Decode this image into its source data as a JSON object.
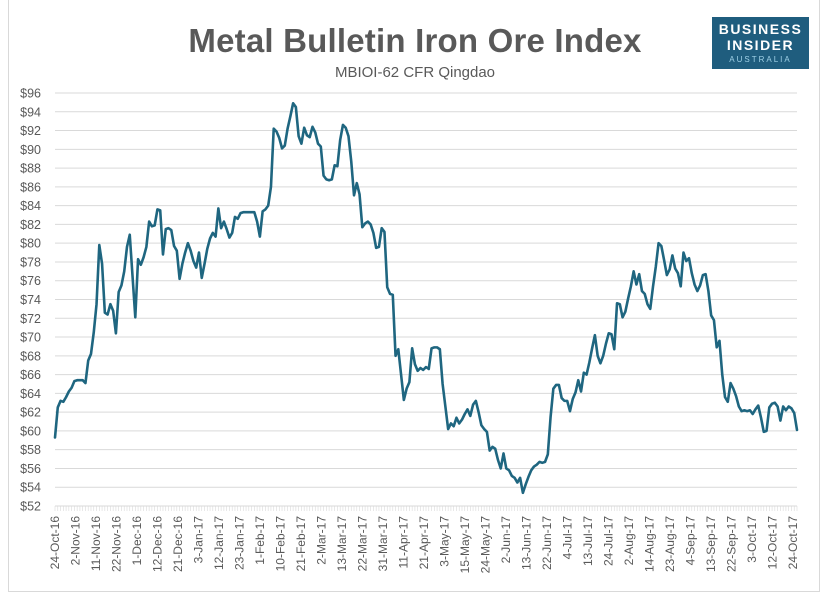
{
  "brand": {
    "line1": "BUSINESS",
    "line2": "INSIDER",
    "line3": "AUSTRALIA",
    "bg_color": "#1f5d7e"
  },
  "chart_data": {
    "type": "line",
    "title": "Metal Bulletin Iron Ore Index",
    "subtitle": "MBIOI-62 CFR Qingdao",
    "xlabel": "",
    "ylabel": "",
    "ylim": [
      52,
      96
    ],
    "ytick_step": 2,
    "yticks": [
      "$52",
      "$54",
      "$56",
      "$58",
      "$60",
      "$62",
      "$64",
      "$66",
      "$68",
      "$70",
      "$72",
      "$74",
      "$76",
      "$78",
      "$80",
      "$82",
      "$84",
      "$86",
      "$88",
      "$90",
      "$92",
      "$94",
      "$96"
    ],
    "xticks": [
      "24-Oct-16",
      "2-Nov-16",
      "11-Nov-16",
      "22-Nov-16",
      "1-Dec-16",
      "12-Dec-16",
      "21-Dec-16",
      "3-Jan-17",
      "12-Jan-17",
      "23-Jan-17",
      "1-Feb-17",
      "10-Feb-17",
      "21-Feb-17",
      "2-Mar-17",
      "13-Mar-17",
      "22-Mar-17",
      "31-Mar-17",
      "11-Apr-17",
      "21-Apr-17",
      "3-May-17",
      "15-May-17",
      "24-May-17",
      "2-Jun-17",
      "13-Jun-17",
      "22-Jun-17",
      "4-Jul-17",
      "13-Jul-17",
      "24-Jul-17",
      "2-Aug-17",
      "14-Aug-17",
      "23-Aug-17",
      "4-Sep-17",
      "13-Sep-17",
      "22-Sep-17",
      "3-Oct-17",
      "12-Oct-17",
      "24-Oct-17"
    ],
    "grid": true,
    "legend": "none",
    "line_color": "#1f6680",
    "series": [
      {
        "name": "MBIOI-62 CFR Qingdao (US$/t)",
        "values": [
          59.3,
          62.5,
          63.2,
          63.1,
          63.6,
          64.2,
          64.6,
          65.3,
          65.4,
          65.4,
          65.4,
          65.1,
          67.5,
          68.2,
          70.5,
          73.5,
          79.8,
          77.8,
          72.6,
          72.4,
          73.5,
          72.8,
          70.4,
          74.8,
          75.5,
          77,
          79.6,
          80.9,
          76.5,
          72.1,
          78.3,
          77.7,
          78.5,
          79.6,
          82.3,
          81.8,
          81.9,
          83.6,
          83.5,
          78.8,
          81.5,
          81.6,
          81.4,
          79.7,
          79.2,
          76.2,
          77.8,
          79,
          80,
          79.2,
          78.1,
          77.4,
          79,
          76.3,
          77.8,
          79.4,
          80.5,
          81.1,
          80.7,
          83.7,
          81.6,
          82.3,
          81.5,
          80.6,
          81.1,
          82.8,
          82.6,
          83.2,
          83.3,
          83.3,
          83.3,
          83.3,
          83.3,
          82.3,
          80.7,
          83.4,
          83.6,
          84,
          86,
          92.2,
          91.9,
          91.2,
          90.1,
          90.4,
          92.2,
          93.5,
          94.9,
          94.5,
          91.4,
          90.6,
          92.3,
          91.5,
          91.3,
          92.4,
          91.8,
          90.6,
          90.3,
          87.2,
          86.8,
          86.7,
          86.8,
          88.3,
          88.2,
          91,
          92.6,
          92.3,
          91.4,
          88.7,
          85.1,
          86.4,
          85.2,
          81.7,
          82.1,
          82.3,
          82,
          81.1,
          79.5,
          79.6,
          81.6,
          81.2,
          75.3,
          74.6,
          74.5,
          68,
          68.7,
          66,
          63.3,
          64.5,
          65.2,
          68.8,
          67.1,
          66.4,
          66.7,
          66.5,
          66.8,
          66.6,
          68.8,
          68.9,
          68.9,
          68.7,
          65,
          62.6,
          60.2,
          60.8,
          60.5,
          61.4,
          60.8,
          61.2,
          61.8,
          62.3,
          61.6,
          62.8,
          63.2,
          62,
          60.6,
          60.2,
          59.9,
          57.9,
          58.3,
          58.1,
          56.9,
          56,
          57.6,
          56,
          55.8,
          55.2,
          55,
          54.5,
          55,
          53.4,
          54.3,
          55.1,
          55.8,
          56.2,
          56.4,
          56.7,
          56.6,
          56.7,
          57.5,
          61.5,
          64.5,
          64.9,
          64.9,
          63.5,
          63.2,
          63.2,
          62.1,
          63.4,
          64.1,
          65.4,
          64.2,
          66.2,
          66,
          67.3,
          68.8,
          70.2,
          68,
          67.2,
          68,
          69.3,
          70.4,
          70.3,
          68.7,
          73.6,
          73.5,
          72.1,
          72.7,
          74.1,
          75.4,
          77,
          75.6,
          76.7,
          74.9,
          74.6,
          73.5,
          73,
          75.4,
          77.5,
          80,
          79.7,
          78.2,
          76.6,
          77.2,
          78.7,
          77.3,
          76.8,
          75.4,
          79,
          78.1,
          78.4,
          76.8,
          75.6,
          74.9,
          75.5,
          76.6,
          76.7,
          74.9,
          72.3,
          71.8,
          68.9,
          69.6,
          66,
          63.6,
          63.1,
          65.1,
          64.5,
          63.7,
          62.6,
          62.1,
          62.2,
          62.1,
          62.2,
          61.8,
          62.3,
          62.7,
          61.4,
          59.9,
          60,
          62.5,
          62.9,
          63,
          62.6,
          61.1,
          62.6,
          62.2,
          62.6,
          62.4,
          61.9,
          60.1
        ]
      }
    ]
  }
}
